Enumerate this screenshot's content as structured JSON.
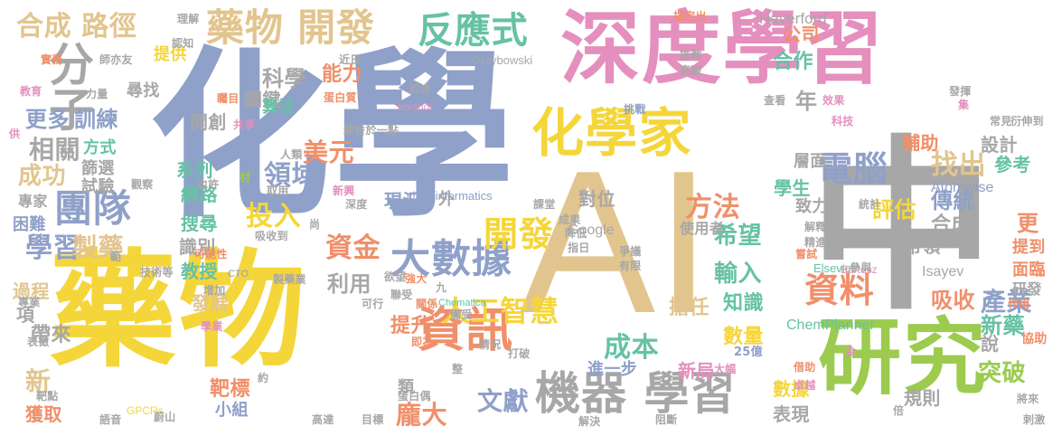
{
  "palette": {
    "blue": "#8fa0c9",
    "pink": "#e48fbd",
    "yellow": "#f5d63a",
    "tan": "#e2c58e",
    "green": "#9ccb4f",
    "teal": "#66c2a5",
    "orange": "#f08f6a",
    "gray": "#a7a7a7"
  },
  "words": [
    {
      "text": "化學",
      "color": "blue",
      "vertical": false
    },
    {
      "text": "AI",
      "color": "tan",
      "vertical": false
    },
    {
      "text": "中",
      "color": "gray",
      "vertical": false
    },
    {
      "text": "深度學習",
      "color": "pink",
      "vertical": false
    },
    {
      "text": "藥物",
      "color": "yellow",
      "vertical": false
    },
    {
      "text": "研究",
      "color": "green",
      "vertical": false
    },
    {
      "text": "化學家",
      "color": "yellow",
      "vertical": false
    },
    {
      "text": "機器 學習",
      "color": "gray",
      "vertical": false
    },
    {
      "text": "藥物 開發",
      "color": "tan",
      "vertical": false
    },
    {
      "text": "反應式",
      "color": "teal",
      "vertical": false
    },
    {
      "text": "資訊",
      "color": "orange",
      "vertical": false
    },
    {
      "text": "大數據",
      "color": "blue",
      "vertical": false
    },
    {
      "text": "合成 路徑",
      "color": "tan",
      "vertical": false
    },
    {
      "text": "分子",
      "color": "gray",
      "vertical": false
    },
    {
      "text": "團隊",
      "color": "blue",
      "vertical": false
    },
    {
      "text": "電腦",
      "color": "blue",
      "vertical": false
    },
    {
      "text": "開發",
      "color": "yellow",
      "vertical": false
    },
    {
      "text": "資料",
      "color": "orange",
      "vertical": false
    },
    {
      "text": "學習",
      "color": "blue",
      "vertical": false
    },
    {
      "text": "製藥",
      "color": "tan",
      "vertical": false
    },
    {
      "text": "人工智慧",
      "color": "yellow",
      "vertical": false
    },
    {
      "text": "科學",
      "color": "gray",
      "vertical": false
    },
    {
      "text": "能力",
      "color": "orange",
      "vertical": false
    },
    {
      "text": "公司",
      "color": "orange",
      "vertical": false
    },
    {
      "text": "合作",
      "color": "teal",
      "vertical": false
    },
    {
      "text": "相關",
      "color": "gray",
      "vertical": false
    },
    {
      "text": "更多",
      "color": "blue",
      "vertical": false
    },
    {
      "text": "訓練",
      "color": "blue",
      "vertical": false
    },
    {
      "text": "美元",
      "color": "orange",
      "vertical": false
    },
    {
      "text": "找出",
      "color": "tan",
      "vertical": false
    },
    {
      "text": "方法",
      "color": "orange",
      "vertical": false
    },
    {
      "text": "領域",
      "color": "blue",
      "vertical": false
    },
    {
      "text": "投入",
      "color": "yellow",
      "vertical": false
    },
    {
      "text": "資金",
      "color": "orange",
      "vertical": false
    },
    {
      "text": "希望",
      "color": "teal",
      "vertical": false
    },
    {
      "text": "輸入",
      "color": "teal",
      "vertical": false
    },
    {
      "text": "評估",
      "color": "yellow",
      "vertical": false
    },
    {
      "text": "傳統",
      "color": "blue",
      "vertical": false
    },
    {
      "text": "合成",
      "color": "gray",
      "vertical": false
    },
    {
      "text": "產業",
      "color": "blue",
      "vertical": false
    },
    {
      "text": "吸收",
      "color": "orange",
      "vertical": false
    },
    {
      "text": "新藥",
      "color": "teal",
      "vertical": false
    },
    {
      "text": "成本",
      "color": "teal",
      "vertical": false
    },
    {
      "text": "文獻",
      "color": "blue",
      "vertical": false
    },
    {
      "text": "龐大",
      "color": "orange",
      "vertical": false
    },
    {
      "text": "突破",
      "color": "green",
      "vertical": false
    },
    {
      "text": "擔任",
      "color": "tan",
      "vertical": false
    },
    {
      "text": "知識",
      "color": "teal",
      "vertical": false
    },
    {
      "text": "利用",
      "color": "gray",
      "vertical": false
    },
    {
      "text": "提升",
      "color": "orange",
      "vertical": false
    },
    {
      "text": "數量",
      "color": "yellow",
      "vertical": false
    },
    {
      "text": "規則",
      "color": "gray",
      "vertical": false
    },
    {
      "text": "更",
      "color": "orange",
      "vertical": false
    },
    {
      "text": "新",
      "color": "tan",
      "vertical": false
    },
    {
      "text": "獲取",
      "color": "orange",
      "vertical": false
    },
    {
      "text": "靶標",
      "color": "orange",
      "vertical": false
    },
    {
      "text": "成功",
      "color": "tan",
      "vertical": false
    },
    {
      "text": "學生",
      "color": "teal",
      "vertical": false
    },
    {
      "text": "輔助",
      "color": "orange",
      "vertical": false
    },
    {
      "text": "設計",
      "color": "gray",
      "vertical": false
    },
    {
      "text": "參考",
      "color": "teal",
      "vertical": false
    },
    {
      "text": "提到",
      "color": "orange",
      "vertical": false
    },
    {
      "text": "面臨",
      "color": "orange",
      "vertical": false
    },
    {
      "text": "研發",
      "color": "gray",
      "vertical": false
    },
    {
      "text": "說",
      "color": "gray",
      "vertical": false
    },
    {
      "text": "帶領",
      "color": "gray",
      "vertical": false
    },
    {
      "text": "帶來",
      "color": "gray",
      "vertical": false
    },
    {
      "text": "過程",
      "color": "tan",
      "vertical": false
    },
    {
      "text": "項",
      "color": "gray",
      "vertical": false
    },
    {
      "text": "發展",
      "color": "tan",
      "vertical": false
    },
    {
      "text": "教授",
      "color": "teal",
      "vertical": false
    },
    {
      "text": "識別",
      "color": "gray",
      "vertical": false
    },
    {
      "text": "搜尋",
      "color": "teal",
      "vertical": false
    },
    {
      "text": "網路",
      "color": "teal",
      "vertical": false
    },
    {
      "text": "系列",
      "color": "teal",
      "vertical": false
    },
    {
      "text": "篩選",
      "color": "gray",
      "vertical": false
    },
    {
      "text": "方式",
      "color": "teal",
      "vertical": false
    },
    {
      "text": "試驗",
      "color": "gray",
      "vertical": false
    },
    {
      "text": "困難",
      "color": "blue",
      "vertical": false
    },
    {
      "text": "專家",
      "color": "gray",
      "vertical": false
    },
    {
      "text": "開創",
      "color": "gray",
      "vertical": false
    },
    {
      "text": "關鍵",
      "color": "gray",
      "vertical": false
    },
    {
      "text": "算法",
      "color": "teal",
      "vertical": false
    },
    {
      "text": "提供",
      "color": "yellow",
      "vertical": false
    },
    {
      "text": "尋找",
      "color": "gray",
      "vertical": false
    },
    {
      "text": "層面",
      "color": "gray",
      "vertical": false
    },
    {
      "text": "致力",
      "color": "gray",
      "vertical": false
    },
    {
      "text": "年",
      "color": "gray",
      "vertical": false
    },
    {
      "text": "對位",
      "color": "gray",
      "vertical": false
    },
    {
      "text": "外",
      "color": "gray",
      "vertical": false
    },
    {
      "text": "現況",
      "color": "blue",
      "vertical": false
    },
    {
      "text": "使用者",
      "color": "gray",
      "vertical": false
    },
    {
      "text": "進一步",
      "color": "blue",
      "vertical": false
    },
    {
      "text": "新局",
      "color": "pink",
      "vertical": false
    },
    {
      "text": "類",
      "color": "gray",
      "vertical": false
    },
    {
      "text": "表現",
      "color": "gray",
      "vertical": false
    },
    {
      "text": "數據",
      "color": "yellow",
      "vertical": false
    },
    {
      "text": "小組",
      "color": "blue",
      "vertical": false
    },
    {
      "text": "Haverford",
      "color": "gray",
      "vertical": false
    },
    {
      "text": "Atomwise",
      "color": "blue",
      "vertical": false
    },
    {
      "text": "Google",
      "color": "gray",
      "vertical": false
    },
    {
      "text": "ChemPlanner",
      "color": "teal",
      "vertical": false
    },
    {
      "text": "Isayev",
      "color": "gray",
      "vertical": false
    },
    {
      "text": "Elsevier",
      "color": "teal",
      "vertical": false
    },
    {
      "text": "Bartosz",
      "color": "pink",
      "vertical": false
    },
    {
      "text": "cheminformatics",
      "color": "blue",
      "vertical": false
    },
    {
      "text": "Grzybowski",
      "color": "gray",
      "vertical": false
    },
    {
      "text": "lexandr",
      "color": "pink",
      "vertical": false
    },
    {
      "text": "Chematica",
      "color": "teal",
      "vertical": false
    },
    {
      "text": "CTO",
      "color": "blue",
      "vertical": false
    },
    {
      "text": "GPCRs",
      "color": "yellow",
      "vertical": false
    },
    {
      "text": "25億",
      "color": "blue",
      "vertical": false
    },
    {
      "text": "科技",
      "color": "pink",
      "vertical": false
    },
    {
      "text": "常見",
      "color": "gray",
      "vertical": false
    },
    {
      "text": "衍伸到",
      "color": "gray",
      "vertical": false
    },
    {
      "text": "作用",
      "color": "orange",
      "vertical": false
    },
    {
      "text": "協助",
      "color": "orange",
      "vertical": false
    },
    {
      "text": "刺激",
      "color": "gray",
      "vertical": false
    },
    {
      "text": "將來",
      "color": "gray",
      "vertical": false
    },
    {
      "text": "卓越",
      "color": "pink",
      "vertical": false
    },
    {
      "text": "借助",
      "color": "orange",
      "vertical": false
    },
    {
      "text": "大幅",
      "color": "pink",
      "vertical": false
    },
    {
      "text": "全",
      "color": "pink",
      "vertical": false
    },
    {
      "text": "倍",
      "color": "gray",
      "vertical": false
    },
    {
      "text": "參與",
      "color": "gray",
      "vertical": false
    },
    {
      "text": "解釋",
      "color": "gray",
      "vertical": false
    },
    {
      "text": "精進",
      "color": "gray",
      "vertical": false
    },
    {
      "text": "嘗試",
      "color": "orange",
      "vertical": false
    },
    {
      "text": "統計",
      "color": "gray",
      "vertical": false
    },
    {
      "text": "效果",
      "color": "pink",
      "vertical": false
    },
    {
      "text": "發揮",
      "color": "gray",
      "vertical": false
    },
    {
      "text": "集",
      "color": "pink",
      "vertical": false
    },
    {
      "text": "查看",
      "color": "gray",
      "vertical": false
    },
    {
      "text": "挑戰",
      "color": "blue",
      "vertical": false
    },
    {
      "text": "施教",
      "color": "gray",
      "vertical": false
    },
    {
      "text": "亮眼",
      "color": "gray",
      "vertical": false
    },
    {
      "text": "指定出",
      "color": "orange",
      "vertical": false
    },
    {
      "text": "理解",
      "color": "gray",
      "vertical": false
    },
    {
      "text": "認知",
      "color": "gray",
      "vertical": false
    },
    {
      "text": "師亦友",
      "color": "gray",
      "vertical": false
    },
    {
      "text": "實務",
      "color": "orange",
      "vertical": false
    },
    {
      "text": "教育",
      "color": "pink",
      "vertical": false
    },
    {
      "text": "力量",
      "color": "gray",
      "vertical": false
    },
    {
      "text": "供",
      "color": "pink",
      "vertical": false
    },
    {
      "text": "矚目",
      "color": "orange",
      "vertical": false
    },
    {
      "text": "共享",
      "color": "pink",
      "vertical": false
    },
    {
      "text": "人類",
      "color": "gray",
      "vertical": false
    },
    {
      "text": "取用",
      "color": "gray",
      "vertical": false
    },
    {
      "text": "材",
      "color": "green",
      "vertical": false
    },
    {
      "text": "範",
      "color": "gray",
      "vertical": false
    },
    {
      "text": "吸收到",
      "color": "gray",
      "vertical": false
    },
    {
      "text": "尚",
      "color": "gray",
      "vertical": false
    },
    {
      "text": "可能性",
      "color": "orange",
      "vertical": false
    },
    {
      "text": "技術等",
      "color": "gray",
      "vertical": false
    },
    {
      "text": "專業",
      "color": "gray",
      "vertical": false
    },
    {
      "text": "表徵",
      "color": "gray",
      "vertical": false
    },
    {
      "text": "蔚山",
      "color": "gray",
      "vertical": false
    },
    {
      "text": "語音",
      "color": "gray",
      "vertical": false
    },
    {
      "text": "靶點",
      "color": "gray",
      "vertical": false
    },
    {
      "text": "高達",
      "color": "gray",
      "vertical": false
    },
    {
      "text": "目標",
      "color": "gray",
      "vertical": false
    },
    {
      "text": "解決",
      "color": "gray",
      "vertical": false
    },
    {
      "text": "阻斷",
      "color": "gray",
      "vertical": false
    },
    {
      "text": "蛋白質",
      "color": "orange",
      "vertical": false
    },
    {
      "text": "前述",
      "color": "gray",
      "vertical": false
    },
    {
      "text": "歸咎於一點",
      "color": "gray",
      "vertical": false
    },
    {
      "text": "新興",
      "color": "pink",
      "vertical": false
    },
    {
      "text": "深度",
      "color": "gray",
      "vertical": false
    },
    {
      "text": "課堂",
      "color": "gray",
      "vertical": false
    },
    {
      "text": "成果",
      "color": "gray",
      "vertical": false
    },
    {
      "text": "降低",
      "color": "gray",
      "vertical": false
    },
    {
      "text": "指日",
      "color": "gray",
      "vertical": false
    },
    {
      "text": "爭議",
      "color": "gray",
      "vertical": false
    },
    {
      "text": "有限",
      "color": "gray",
      "vertical": false
    },
    {
      "text": "欲望",
      "color": "gray",
      "vertical": false
    },
    {
      "text": "強大",
      "color": "orange",
      "vertical": false
    },
    {
      "text": "聯受",
      "color": "gray",
      "vertical": false
    },
    {
      "text": "關係",
      "color": "orange",
      "vertical": false
    },
    {
      "text": "九",
      "color": "gray",
      "vertical": false
    },
    {
      "text": "備受",
      "color": "gray",
      "vertical": false
    },
    {
      "text": "可行",
      "color": "gray",
      "vertical": false
    },
    {
      "text": "增加",
      "color": "gray",
      "vertical": false
    },
    {
      "text": "學業",
      "color": "pink",
      "vertical": false
    },
    {
      "text": "製藥業",
      "color": "gray",
      "vertical": false
    },
    {
      "text": "也許",
      "color": "gray",
      "vertical": false
    },
    {
      "text": "近日",
      "color": "gray",
      "vertical": false
    },
    {
      "text": "情況",
      "color": "gray",
      "vertical": false
    },
    {
      "text": "打破",
      "color": "gray",
      "vertical": false
    },
    {
      "text": "即為",
      "color": "orange",
      "vertical": false
    },
    {
      "text": "蛋白偶",
      "color": "gray",
      "vertical": false
    },
    {
      "text": "整",
      "color": "gray",
      "vertical": false
    },
    {
      "text": "約",
      "color": "gray",
      "vertical": false
    },
    {
      "text": "觀察",
      "color": "gray",
      "vertical": false
    }
  ]
}
